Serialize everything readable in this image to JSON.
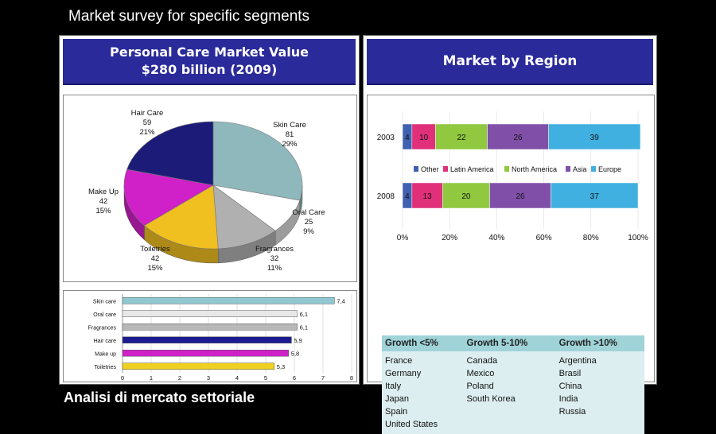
{
  "header": {
    "title": "Market survey for specific segments"
  },
  "footer": {
    "title": "Analisi di mercato settoriale"
  },
  "left_banner": {
    "line1": "Personal Care Market  Value",
    "line2": "$280 billion (2009)"
  },
  "right_banner": {
    "title": "Market by Region"
  },
  "chart_data": [
    {
      "type": "pie",
      "title": "",
      "slices": [
        {
          "label": "Skin Care",
          "value": 81,
          "percent": "29%",
          "color": "#8fb8bc"
        },
        {
          "label": "Oral Care",
          "value": 25,
          "percent": "9%",
          "color": "#ffffff"
        },
        {
          "label": "Fragrances",
          "value": 32,
          "percent": "11%",
          "color": "#b0b0b0"
        },
        {
          "label": "Toiletries",
          "value": 42,
          "percent": "15%",
          "color": "#f0c020"
        },
        {
          "label": "Make Up",
          "value": 42,
          "percent": "15%",
          "color": "#d020c8"
        },
        {
          "label": "Hair Care",
          "value": 59,
          "percent": "21%",
          "color": "#1c1c78"
        }
      ]
    },
    {
      "type": "bar",
      "orientation": "horizontal",
      "categories": [
        "Skin care",
        "Oral care",
        "Fragrances",
        "Hair care",
        "Make up",
        "Toiletries"
      ],
      "values": [
        7.4,
        6.1,
        6.1,
        5.9,
        5.8,
        5.3
      ],
      "value_labels": [
        "7,4",
        "6,1",
        "6,1",
        "5,9",
        "5,8",
        "5,3"
      ],
      "colors": [
        "#8fc8d0",
        "#e8e8e8",
        "#b8b8b8",
        "#1c1c90",
        "#d020c8",
        "#f0d020"
      ],
      "xlim": [
        0,
        8
      ],
      "xticks": [
        "0",
        "1",
        "2",
        "3",
        "4",
        "5",
        "6",
        "7",
        "8"
      ],
      "grid": true
    },
    {
      "type": "bar",
      "orientation": "horizontal",
      "stacked": true,
      "categories": [
        "2003",
        "2008"
      ],
      "series": [
        {
          "name": "Other",
          "values": [
            4,
            4
          ],
          "color": "#4060b0"
        },
        {
          "name": "Latin America",
          "values": [
            10,
            13
          ],
          "color": "#e0307a"
        },
        {
          "name": "North America",
          "values": [
            22,
            20
          ],
          "color": "#90c840"
        },
        {
          "name": "Asia",
          "values": [
            26,
            26
          ],
          "color": "#8050a8"
        },
        {
          "name": "Europe",
          "values": [
            39,
            37
          ],
          "color": "#40b0e0"
        }
      ],
      "xticks": [
        "0%",
        "20%",
        "40%",
        "60%",
        "80%",
        "100%"
      ],
      "xlim": [
        0,
        100
      ],
      "legend": "middle"
    }
  ],
  "growth": {
    "headers": [
      "Growth <5%",
      "Growth 5-10%",
      "Growth >10%"
    ],
    "columns": [
      [
        "France",
        "Germany",
        "Italy",
        "Japan",
        "Spain",
        "United States"
      ],
      [
        "Canada",
        "Mexico",
        "Poland",
        "South Korea"
      ],
      [
        "Argentina",
        "Brasil",
        "China",
        "India",
        "Russia"
      ]
    ]
  }
}
